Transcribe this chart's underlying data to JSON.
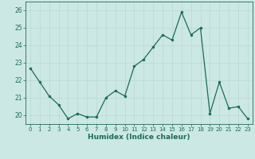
{
  "title": "",
  "xlabel": "Humidex (Indice chaleur)",
  "ylabel": "",
  "x_values": [
    0,
    1,
    2,
    3,
    4,
    5,
    6,
    7,
    8,
    9,
    10,
    11,
    12,
    13,
    14,
    15,
    16,
    17,
    18,
    19,
    20,
    21,
    22,
    23
  ],
  "y_values": [
    22.7,
    21.9,
    21.1,
    20.6,
    19.8,
    20.1,
    19.9,
    19.9,
    21.0,
    21.4,
    21.1,
    22.8,
    23.2,
    23.9,
    24.6,
    24.3,
    25.9,
    24.6,
    25.0,
    20.1,
    21.9,
    20.4,
    20.5,
    19.8
  ],
  "line_color": "#1a6b5a",
  "marker": "o",
  "markersize": 2.0,
  "linewidth": 0.9,
  "bg_color": "#cce8e4",
  "grid_color": "#b8d8d4",
  "tick_color": "#1a6b5a",
  "label_color": "#1a6b5a",
  "ylim": [
    19.5,
    26.5
  ],
  "yticks": [
    20,
    21,
    22,
    23,
    24,
    25,
    26
  ],
  "xlim": [
    -0.5,
    23.5
  ],
  "xticks": [
    0,
    1,
    2,
    3,
    4,
    5,
    6,
    7,
    8,
    9,
    10,
    11,
    12,
    13,
    14,
    15,
    16,
    17,
    18,
    19,
    20,
    21,
    22,
    23
  ]
}
